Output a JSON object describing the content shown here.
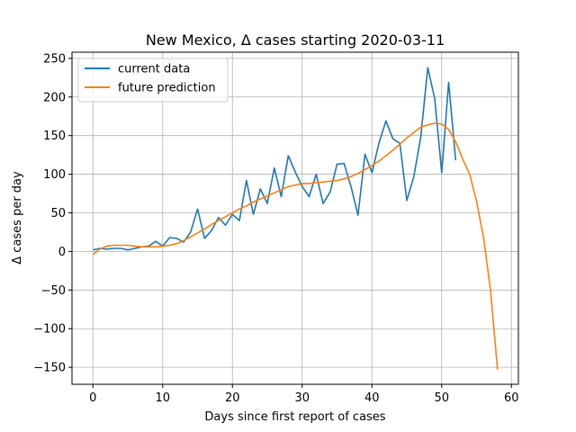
{
  "chart_data": {
    "type": "line",
    "title": "New Mexico, Δ cases starting 2020-03-11",
    "xlabel": "Days since first report of cases",
    "ylabel": "Δ cases per day",
    "xlim": [
      -3,
      61
    ],
    "ylim": [
      -172,
      258
    ],
    "xticks": [
      0,
      10,
      20,
      30,
      40,
      50,
      60
    ],
    "yticks": [
      -150,
      -100,
      -50,
      0,
      50,
      100,
      150,
      200,
      250
    ],
    "ytick_labels": [
      "−150",
      "−100",
      "−50",
      "0",
      "50",
      "100",
      "150",
      "200",
      "250"
    ],
    "grid": true,
    "legend_position": "upper-left",
    "series": [
      {
        "name": "current data",
        "color": "#1f77b4",
        "x": [
          0,
          1,
          2,
          3,
          4,
          5,
          6,
          7,
          8,
          9,
          10,
          11,
          12,
          13,
          14,
          15,
          16,
          17,
          18,
          19,
          20,
          21,
          22,
          23,
          24,
          25,
          26,
          27,
          28,
          29,
          30,
          31,
          32,
          33,
          34,
          35,
          36,
          37,
          38,
          39,
          40,
          41,
          42,
          43,
          44,
          45,
          46,
          47,
          48,
          49,
          50,
          51,
          52
        ],
        "y": [
          2,
          4,
          3,
          4,
          4,
          2,
          4,
          6,
          7,
          13,
          7,
          18,
          17,
          12,
          25,
          55,
          17,
          27,
          44,
          34,
          48,
          40,
          92,
          48,
          81,
          62,
          108,
          71,
          124,
          103,
          84,
          71,
          100,
          62,
          77,
          113,
          114,
          84,
          47,
          126,
          102,
          140,
          169,
          146,
          140,
          66,
          97,
          148,
          238,
          198,
          102,
          219,
          118
        ]
      },
      {
        "name": "future prediction",
        "color": "#ff7f0e",
        "x": [
          0,
          1,
          2,
          3,
          4,
          5,
          6,
          7,
          8,
          9,
          10,
          11,
          12,
          13,
          14,
          15,
          16,
          17,
          18,
          19,
          20,
          21,
          22,
          23,
          24,
          25,
          26,
          27,
          28,
          29,
          30,
          31,
          32,
          33,
          34,
          35,
          36,
          37,
          38,
          39,
          40,
          41,
          42,
          43,
          44,
          45,
          46,
          47,
          48,
          49,
          50,
          51,
          52,
          53,
          54,
          55,
          56,
          57,
          58
        ],
        "y": [
          -4,
          3,
          7,
          8,
          8,
          8,
          7,
          6,
          6,
          6,
          7,
          8,
          10,
          14,
          19,
          24,
          29,
          35,
          40,
          45,
          50,
          55,
          59,
          64,
          68,
          72,
          76,
          80,
          84,
          86,
          88,
          88,
          89,
          90,
          91,
          92,
          94,
          97,
          101,
          106,
          111,
          117,
          124,
          131,
          139,
          147,
          154,
          161,
          164,
          166,
          165,
          158,
          142,
          120,
          100,
          65,
          18,
          -50,
          -153
        ]
      }
    ]
  }
}
